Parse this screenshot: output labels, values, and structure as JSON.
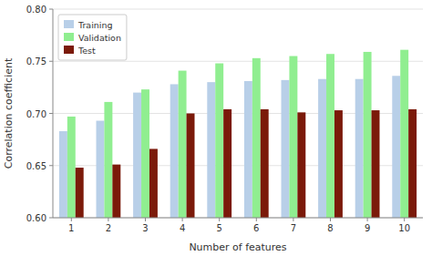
{
  "chart_data": {
    "type": "bar",
    "xlabel": "Number of features",
    "ylabel": "Correlation coefficient",
    "categories": [
      1,
      2,
      3,
      4,
      5,
      6,
      7,
      8,
      9,
      10
    ],
    "series": [
      {
        "name": "Training",
        "color": "#b8cfe8",
        "values": [
          0.683,
          0.693,
          0.72,
          0.728,
          0.73,
          0.731,
          0.732,
          0.733,
          0.733,
          0.736
        ]
      },
      {
        "name": "Validation",
        "color": "#90ee90",
        "values": [
          0.697,
          0.711,
          0.723,
          0.741,
          0.748,
          0.753,
          0.755,
          0.757,
          0.759,
          0.761
        ]
      },
      {
        "name": "Test",
        "color": "#7b1a0a",
        "values": [
          0.648,
          0.651,
          0.666,
          0.7,
          0.704,
          0.704,
          0.701,
          0.703,
          0.703,
          0.704
        ]
      }
    ],
    "ylim": [
      0.6,
      0.8
    ],
    "yticks": [
      {
        "value": 0.6,
        "label": "0.60"
      },
      0.65,
      {
        "value": 0.7,
        "label": "0.70"
      },
      0.75,
      {
        "value": 0.8,
        "label": "0.80"
      }
    ],
    "grid": true,
    "legend": "upper left"
  }
}
